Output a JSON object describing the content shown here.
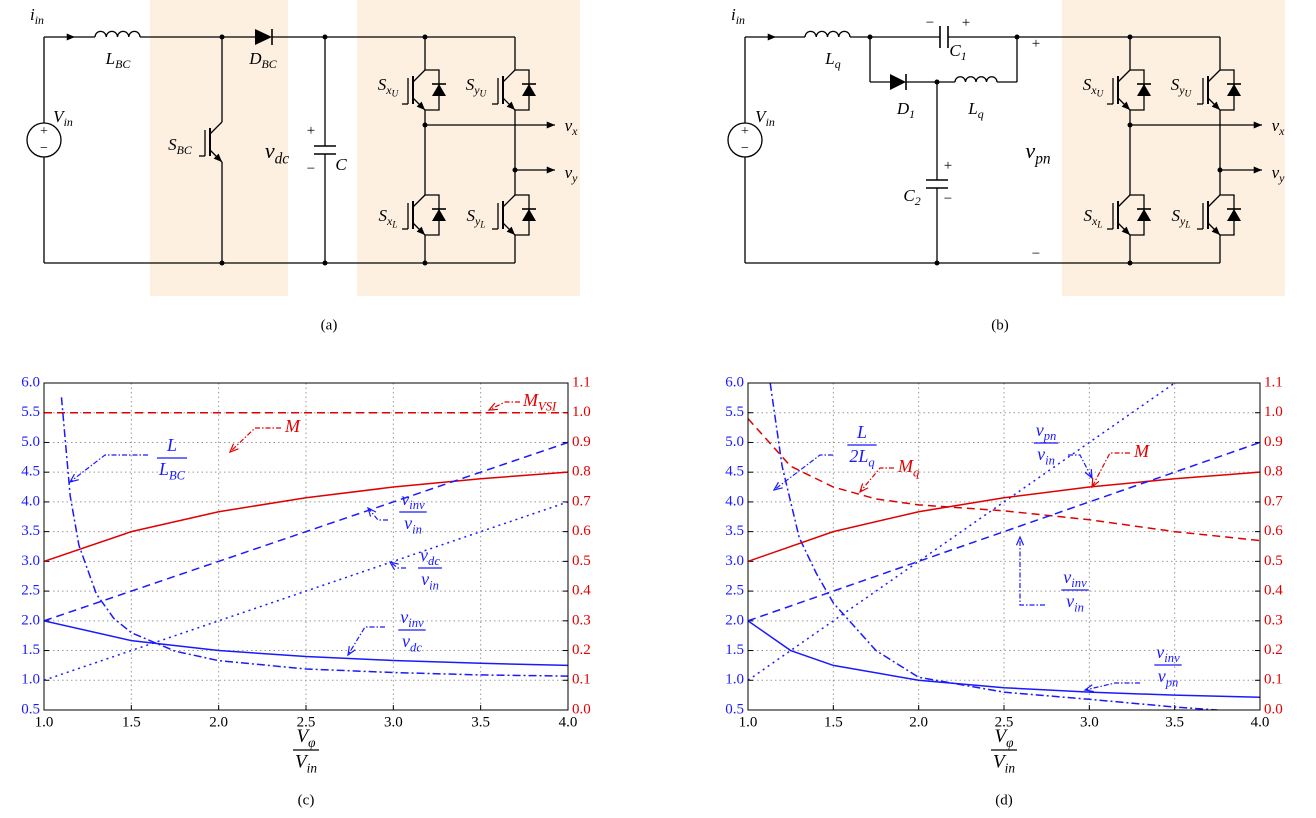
{
  "diagrams": [
    {
      "caption": "(a)",
      "labels": {
        "iin": {
          "base": "i",
          "sub": "in"
        },
        "Vin": {
          "base": "V",
          "sub": "in"
        },
        "src_plus": {
          "base": "+"
        },
        "src_minus": {
          "base": "−"
        },
        "LBC": {
          "base": "L",
          "sub": "BC"
        },
        "DBC": {
          "base": "D",
          "sub": "BC"
        },
        "SBC": {
          "base": "S",
          "sub": "BC"
        },
        "vdc": {
          "base": "v",
          "sub": "dc"
        },
        "cap_plus": {
          "base": "+"
        },
        "cap_minus": {
          "base": "−"
        },
        "C": {
          "base": "C"
        },
        "SxU": {
          "base": "S",
          "sub": "x",
          "subsub": "U"
        },
        "SyU": {
          "base": "S",
          "sub": "y",
          "subsub": "U"
        },
        "SxL": {
          "base": "S",
          "sub": "x",
          "subsub": "L"
        },
        "SyL": {
          "base": "S",
          "sub": "y",
          "subsub": "L"
        },
        "vx": {
          "base": "v",
          "sub": "x"
        },
        "vy": {
          "base": "v",
          "sub": "y"
        }
      }
    },
    {
      "caption": "(b)",
      "labels": {
        "iin": {
          "base": "i",
          "sub": "in"
        },
        "Vin": {
          "base": "V",
          "sub": "in"
        },
        "src_plus": {
          "base": "+"
        },
        "src_minus": {
          "base": "−"
        },
        "Lq1": {
          "base": "L",
          "sub": "q"
        },
        "C1_minus": {
          "base": "−"
        },
        "C1_plus": {
          "base": "+"
        },
        "C1": {
          "base": "C",
          "sub": "1"
        },
        "D1": {
          "base": "D",
          "sub": "1"
        },
        "Lq2": {
          "base": "L",
          "sub": "q"
        },
        "C2_plus": {
          "base": "+"
        },
        "C2_minus": {
          "base": "−"
        },
        "C2": {
          "base": "C",
          "sub": "2"
        },
        "pn_plus": {
          "base": "+"
        },
        "vpn": {
          "base": "v",
          "sub": "pn"
        },
        "pn_minus": {
          "base": "−"
        },
        "SxU": {
          "base": "S",
          "sub": "x",
          "subsub": "U"
        },
        "SyU": {
          "base": "S",
          "sub": "y",
          "subsub": "U"
        },
        "SxL": {
          "base": "S",
          "sub": "x",
          "subsub": "L"
        },
        "SyL": {
          "base": "S",
          "sub": "y",
          "subsub": "L"
        },
        "vx": {
          "base": "v",
          "sub": "x"
        },
        "vy": {
          "base": "v",
          "sub": "y"
        }
      }
    }
  ],
  "chart_data": [
    {
      "type": "line",
      "caption": "(c)",
      "xlabel": {
        "num": {
          "base": "V",
          "sub": "φ"
        },
        "den": {
          "base": "V",
          "sub": "in"
        }
      },
      "xlim": [
        1,
        4
      ],
      "ylim": [
        0.5,
        6
      ],
      "y2lim": [
        0,
        1.1
      ],
      "xticks": [
        {
          "value": 1,
          "label": "1.0"
        },
        1.5,
        {
          "value": 2,
          "label": "2.0"
        },
        2.5,
        {
          "value": 3,
          "label": "3.0"
        },
        3.5,
        {
          "value": 4,
          "label": "4.0"
        }
      ],
      "yticks": [
        0.5,
        {
          "value": 1,
          "label": "1.0"
        },
        1.5,
        {
          "value": 2,
          "label": "2.0"
        },
        2.5,
        {
          "value": 3,
          "label": "3.0"
        },
        3.5,
        {
          "value": 4,
          "label": "4.0"
        },
        4.5,
        {
          "value": 5,
          "label": "5.0"
        },
        5.5,
        {
          "value": 6,
          "label": "6.0"
        }
      ],
      "y2ticks": [
        {
          "value": 0,
          "label": "0.0"
        },
        0.1,
        0.2,
        0.3,
        0.4,
        0.5,
        0.6,
        0.7,
        0.8,
        0.9,
        {
          "value": 1,
          "label": "1.0"
        },
        1.1
      ],
      "grid": true,
      "ycolor": "#1a1aff",
      "y2color": "#e00000",
      "series": [
        {
          "label": {
            "base": "M",
            "sub": "VSI"
          },
          "color": "#e00000",
          "linestyle": "dashed",
          "axis": "y2",
          "x": [
            1,
            4
          ],
          "values": [
            1,
            1
          ]
        },
        {
          "label": {
            "num": {
              "base": "L"
            },
            "den": {
              "base": "L",
              "sub": "BC"
            }
          },
          "color": "#1a1aff",
          "linestyle": "dashdot",
          "x": [
            1.1,
            1.15,
            1.2,
            1.3,
            1.4,
            1.5,
            1.75,
            2,
            2.5,
            3,
            3.5,
            4
          ],
          "values": [
            5.76,
            4.1,
            3.27,
            2.45,
            2.04,
            1.8,
            1.49,
            1.33,
            1.19,
            1.13,
            1.09,
            1.07
          ]
        },
        {
          "label": {
            "base": "M"
          },
          "color": "#e00000",
          "linestyle": "solid",
          "axis": "y2",
          "x": [
            1,
            1.5,
            2,
            2.5,
            3,
            3.5,
            4
          ],
          "values": [
            0.5,
            0.6,
            0.667,
            0.714,
            0.75,
            0.778,
            0.8
          ]
        },
        {
          "label": {
            "num": {
              "base": "v",
              "sub": "inv"
            },
            "den": {
              "base": "v",
              "sub": "in"
            }
          },
          "color": "#1a1aff",
          "linestyle": "dashed",
          "x": [
            1,
            4
          ],
          "values": [
            2,
            5
          ]
        },
        {
          "label": {
            "num": {
              "base": "v",
              "sub": "dc"
            },
            "den": {
              "base": "v",
              "sub": "in"
            }
          },
          "color": "#1a1aff",
          "linestyle": "dotted",
          "x": [
            1,
            4
          ],
          "values": [
            1,
            4
          ]
        },
        {
          "label": {
            "num": {
              "base": "v",
              "sub": "inv"
            },
            "den": {
              "base": "v",
              "sub": "dc"
            }
          },
          "color": "#1a1aff",
          "linestyle": "solid",
          "x": [
            1,
            1.5,
            2,
            2.5,
            3,
            3.5,
            4
          ],
          "values": [
            2,
            1.667,
            1.5,
            1.4,
            1.333,
            1.286,
            1.25
          ]
        }
      ]
    },
    {
      "type": "line",
      "caption": "(d)",
      "xlabel": {
        "num": {
          "base": "V",
          "sub": "φ"
        },
        "den": {
          "base": "V",
          "sub": "in"
        }
      },
      "xlim": [
        1,
        4
      ],
      "ylim": [
        0.5,
        6
      ],
      "y2lim": [
        0,
        1.1
      ],
      "xticks": [
        {
          "value": 1,
          "label": "1.0"
        },
        1.5,
        {
          "value": 2,
          "label": "2.0"
        },
        2.5,
        {
          "value": 3,
          "label": "3.0"
        },
        3.5,
        {
          "value": 4,
          "label": "4.0"
        }
      ],
      "yticks": [
        0.5,
        {
          "value": 1,
          "label": "1.0"
        },
        1.5,
        {
          "value": 2,
          "label": "2.0"
        },
        2.5,
        {
          "value": 3,
          "label": "3.0"
        },
        3.5,
        {
          "value": 4,
          "label": "4.0"
        },
        4.5,
        {
          "value": 5,
          "label": "5.0"
        },
        5.5,
        {
          "value": 6,
          "label": "6.0"
        }
      ],
      "y2ticks": [
        {
          "value": 0,
          "label": "0.0"
        },
        0.1,
        0.2,
        0.3,
        0.4,
        0.5,
        0.6,
        0.7,
        0.8,
        0.9,
        {
          "value": 1,
          "label": "1.0"
        },
        1.1
      ],
      "grid": true,
      "ycolor": "#1a1aff",
      "y2color": "#e00000",
      "series": [
        {
          "label": {
            "num": {
              "base": "L"
            },
            "den": {
              "base": "2L",
              "sub": "q"
            }
          },
          "color": "#1a1aff",
          "linestyle": "dashdot",
          "x": [
            1.13,
            1.2,
            1.3,
            1.4,
            1.5,
            1.75,
            2,
            2.5,
            3,
            3.5,
            3.75
          ],
          "values": [
            6,
            4.6,
            3.4,
            2.8,
            2.3,
            1.5,
            1.05,
            0.8,
            0.68,
            0.55,
            0.5
          ]
        },
        {
          "label": {
            "num": {
              "base": "v",
              "sub": "pn"
            },
            "den": {
              "base": "v",
              "sub": "in"
            }
          },
          "color": "#1a1aff",
          "linestyle": "dotted",
          "x": [
            1,
            3.5
          ],
          "values": [
            1,
            6
          ]
        },
        {
          "label": {
            "base": "M",
            "sub": "q"
          },
          "color": "#e00000",
          "linestyle": "dashed",
          "axis": "y2",
          "x": [
            1,
            1.25,
            1.5,
            1.75,
            2,
            2.5,
            3,
            3.5,
            4
          ],
          "values": [
            0.98,
            0.82,
            0.75,
            0.71,
            0.69,
            0.67,
            0.64,
            0.6,
            0.57
          ]
        },
        {
          "label": {
            "base": "M"
          },
          "color": "#e00000",
          "linestyle": "solid",
          "axis": "y2",
          "x": [
            1,
            1.5,
            2,
            2.5,
            3,
            3.5,
            4
          ],
          "values": [
            0.5,
            0.6,
            0.667,
            0.714,
            0.75,
            0.778,
            0.8
          ]
        },
        {
          "label": {
            "num": {
              "base": "v",
              "sub": "inv"
            },
            "den": {
              "base": "v",
              "sub": "in"
            }
          },
          "color": "#1a1aff",
          "linestyle": "dashed",
          "x": [
            1,
            4
          ],
          "values": [
            2,
            5
          ]
        },
        {
          "label": {
            "num": {
              "base": "v",
              "sub": "inv"
            },
            "den": {
              "base": "v",
              "sub": "pn"
            }
          },
          "color": "#1a1aff",
          "linestyle": "solid",
          "x": [
            1,
            1.25,
            1.5,
            2,
            2.5,
            3,
            3.5,
            4
          ],
          "values": [
            2,
            1.5,
            1.25,
            1,
            0.875,
            0.8,
            0.75,
            0.714
          ]
        }
      ]
    }
  ]
}
